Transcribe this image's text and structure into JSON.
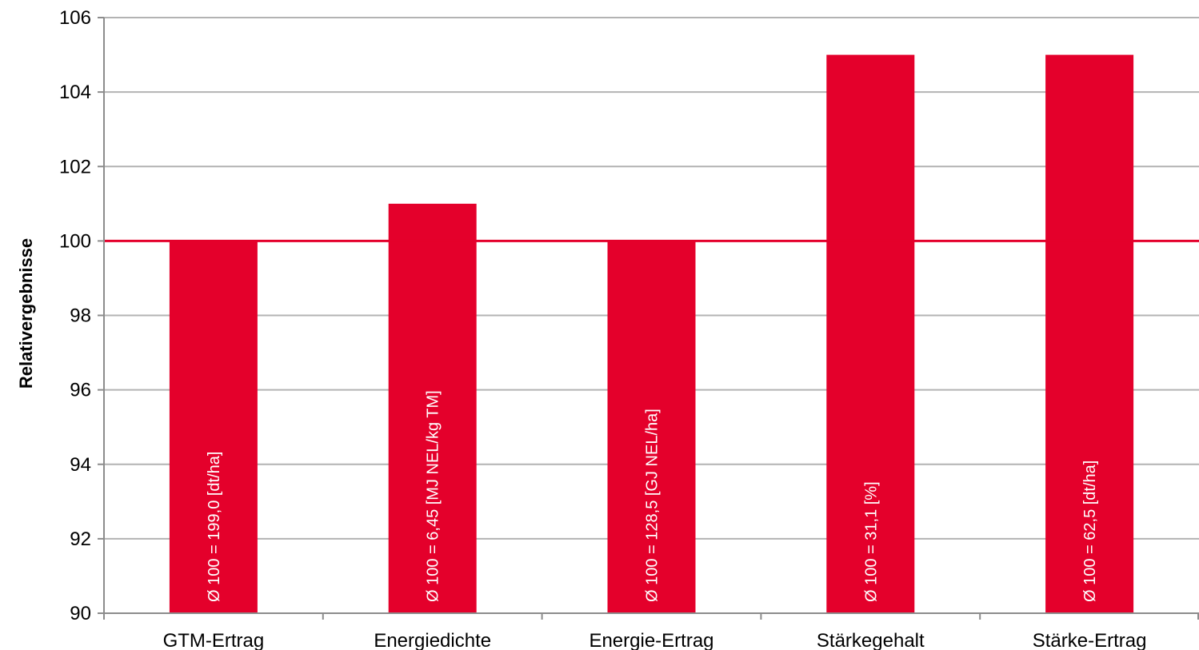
{
  "chart_data": {
    "type": "bar",
    "categories": [
      "GTM-Ertrag",
      "Energiedichte",
      "Energie-Ertrag",
      "Stärkegehalt",
      "Stärke-Ertrag"
    ],
    "values": [
      100,
      101,
      100,
      105,
      105
    ],
    "bar_labels": [
      "Ø 100 = 199,0 [dt/ha]",
      "Ø 100 = 6,45 [MJ NEL/kg TM]",
      "Ø 100 = 128,5 [GJ NEL/ha]",
      "Ø 100 = 31,1 [%]",
      "Ø 100 = 62,5 [dt/ha]"
    ],
    "title": "",
    "xlabel": "",
    "ylabel": "Relativergebnisse",
    "ylim": [
      90,
      106
    ],
    "yticks": [
      90,
      92,
      94,
      96,
      98,
      100,
      102,
      104,
      106
    ],
    "reference_line": 100,
    "grid": true,
    "legend": "none",
    "colors": {
      "bar": "#e4002b",
      "reference_line": "#e4002b",
      "grid": "#b3b3b3",
      "axis": "#8c8c8c"
    }
  }
}
